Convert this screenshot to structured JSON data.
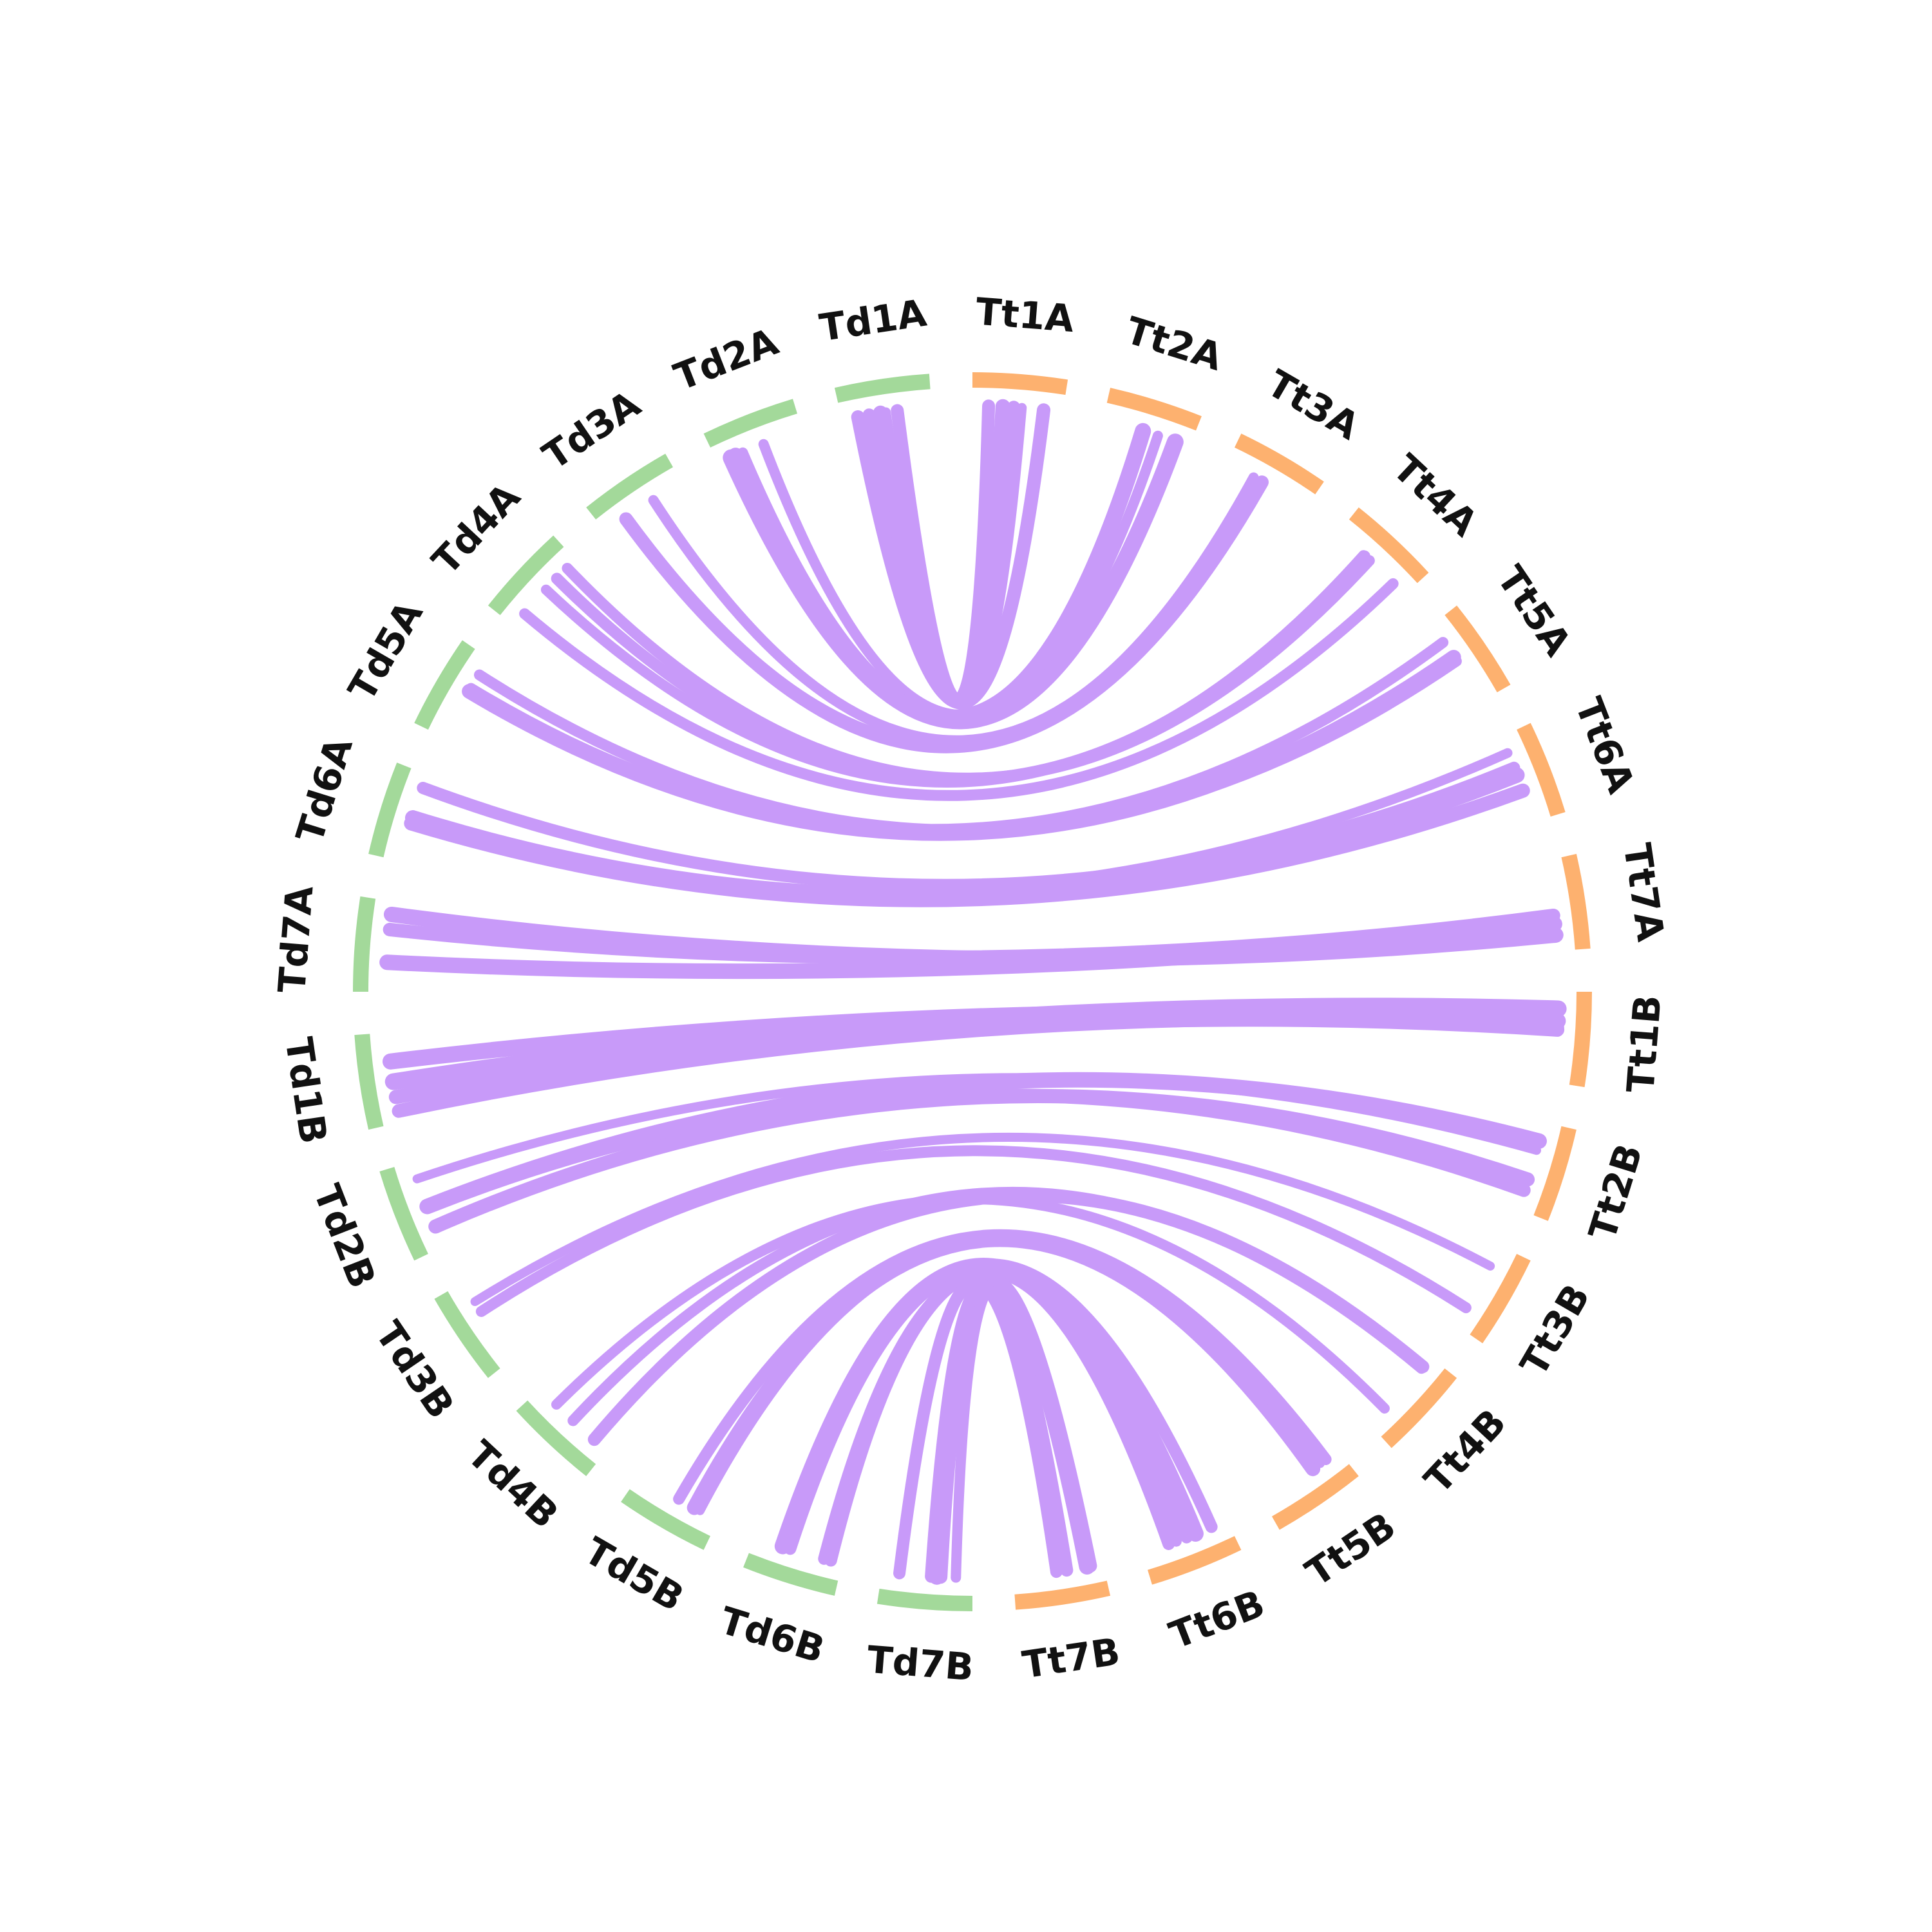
{
  "colors": {
    "group_td": "#a3d99a",
    "group_tt": "#fdb16f",
    "links": "#c89af9",
    "label": "#111111"
  },
  "chart_data": {
    "type": "chord",
    "segments": [
      {
        "id": "Td1A",
        "group": "Td"
      },
      {
        "id": "Td2A",
        "group": "Td"
      },
      {
        "id": "Td3A",
        "group": "Td"
      },
      {
        "id": "Td4A",
        "group": "Td"
      },
      {
        "id": "Td5A",
        "group": "Td"
      },
      {
        "id": "Td6A",
        "group": "Td"
      },
      {
        "id": "Td7A",
        "group": "Td"
      },
      {
        "id": "Td1B",
        "group": "Td"
      },
      {
        "id": "Td2B",
        "group": "Td"
      },
      {
        "id": "Td3B",
        "group": "Td"
      },
      {
        "id": "Td4B",
        "group": "Td"
      },
      {
        "id": "Td5B",
        "group": "Td"
      },
      {
        "id": "Td6B",
        "group": "Td"
      },
      {
        "id": "Td7B",
        "group": "Td"
      },
      {
        "id": "Tt7B",
        "group": "Tt"
      },
      {
        "id": "Tt6B",
        "group": "Tt"
      },
      {
        "id": "Tt5B",
        "group": "Tt"
      },
      {
        "id": "Tt4B",
        "group": "Tt"
      },
      {
        "id": "Tt3B",
        "group": "Tt"
      },
      {
        "id": "Tt2B",
        "group": "Tt"
      },
      {
        "id": "Tt1B",
        "group": "Tt"
      },
      {
        "id": "Tt7A",
        "group": "Tt"
      },
      {
        "id": "Tt6A",
        "group": "Tt"
      },
      {
        "id": "Tt5A",
        "group": "Tt"
      },
      {
        "id": "Tt4A",
        "group": "Tt"
      },
      {
        "id": "Tt3A",
        "group": "Tt"
      },
      {
        "id": "Tt2A",
        "group": "Tt"
      },
      {
        "id": "Tt1A",
        "group": "Tt"
      }
    ],
    "links": [
      {
        "source": "Td1A",
        "target": "Tt1A",
        "count": 5
      },
      {
        "source": "Td2A",
        "target": "Tt2A",
        "count": 4
      },
      {
        "source": "Td3A",
        "target": "Tt3A",
        "count": 2
      },
      {
        "source": "Td4A",
        "target": "Tt4A",
        "count": 4
      },
      {
        "source": "Td5A",
        "target": "Tt5A",
        "count": 3
      },
      {
        "source": "Td6A",
        "target": "Tt6A",
        "count": 5
      },
      {
        "source": "Td7A",
        "target": "Tt7A",
        "count": 4
      },
      {
        "source": "Td1B",
        "target": "Tt1B",
        "count": 5
      },
      {
        "source": "Td2B",
        "target": "Tt2B",
        "count": 4
      },
      {
        "source": "Td3B",
        "target": "Tt3B",
        "count": 2
      },
      {
        "source": "Td4B",
        "target": "Tt4B",
        "count": 3
      },
      {
        "source": "Td5B",
        "target": "Tt5B",
        "count": 3
      },
      {
        "source": "Td6B",
        "target": "Tt6B",
        "count": 5
      },
      {
        "source": "Td7B",
        "target": "Tt7B",
        "count": 5
      }
    ]
  }
}
